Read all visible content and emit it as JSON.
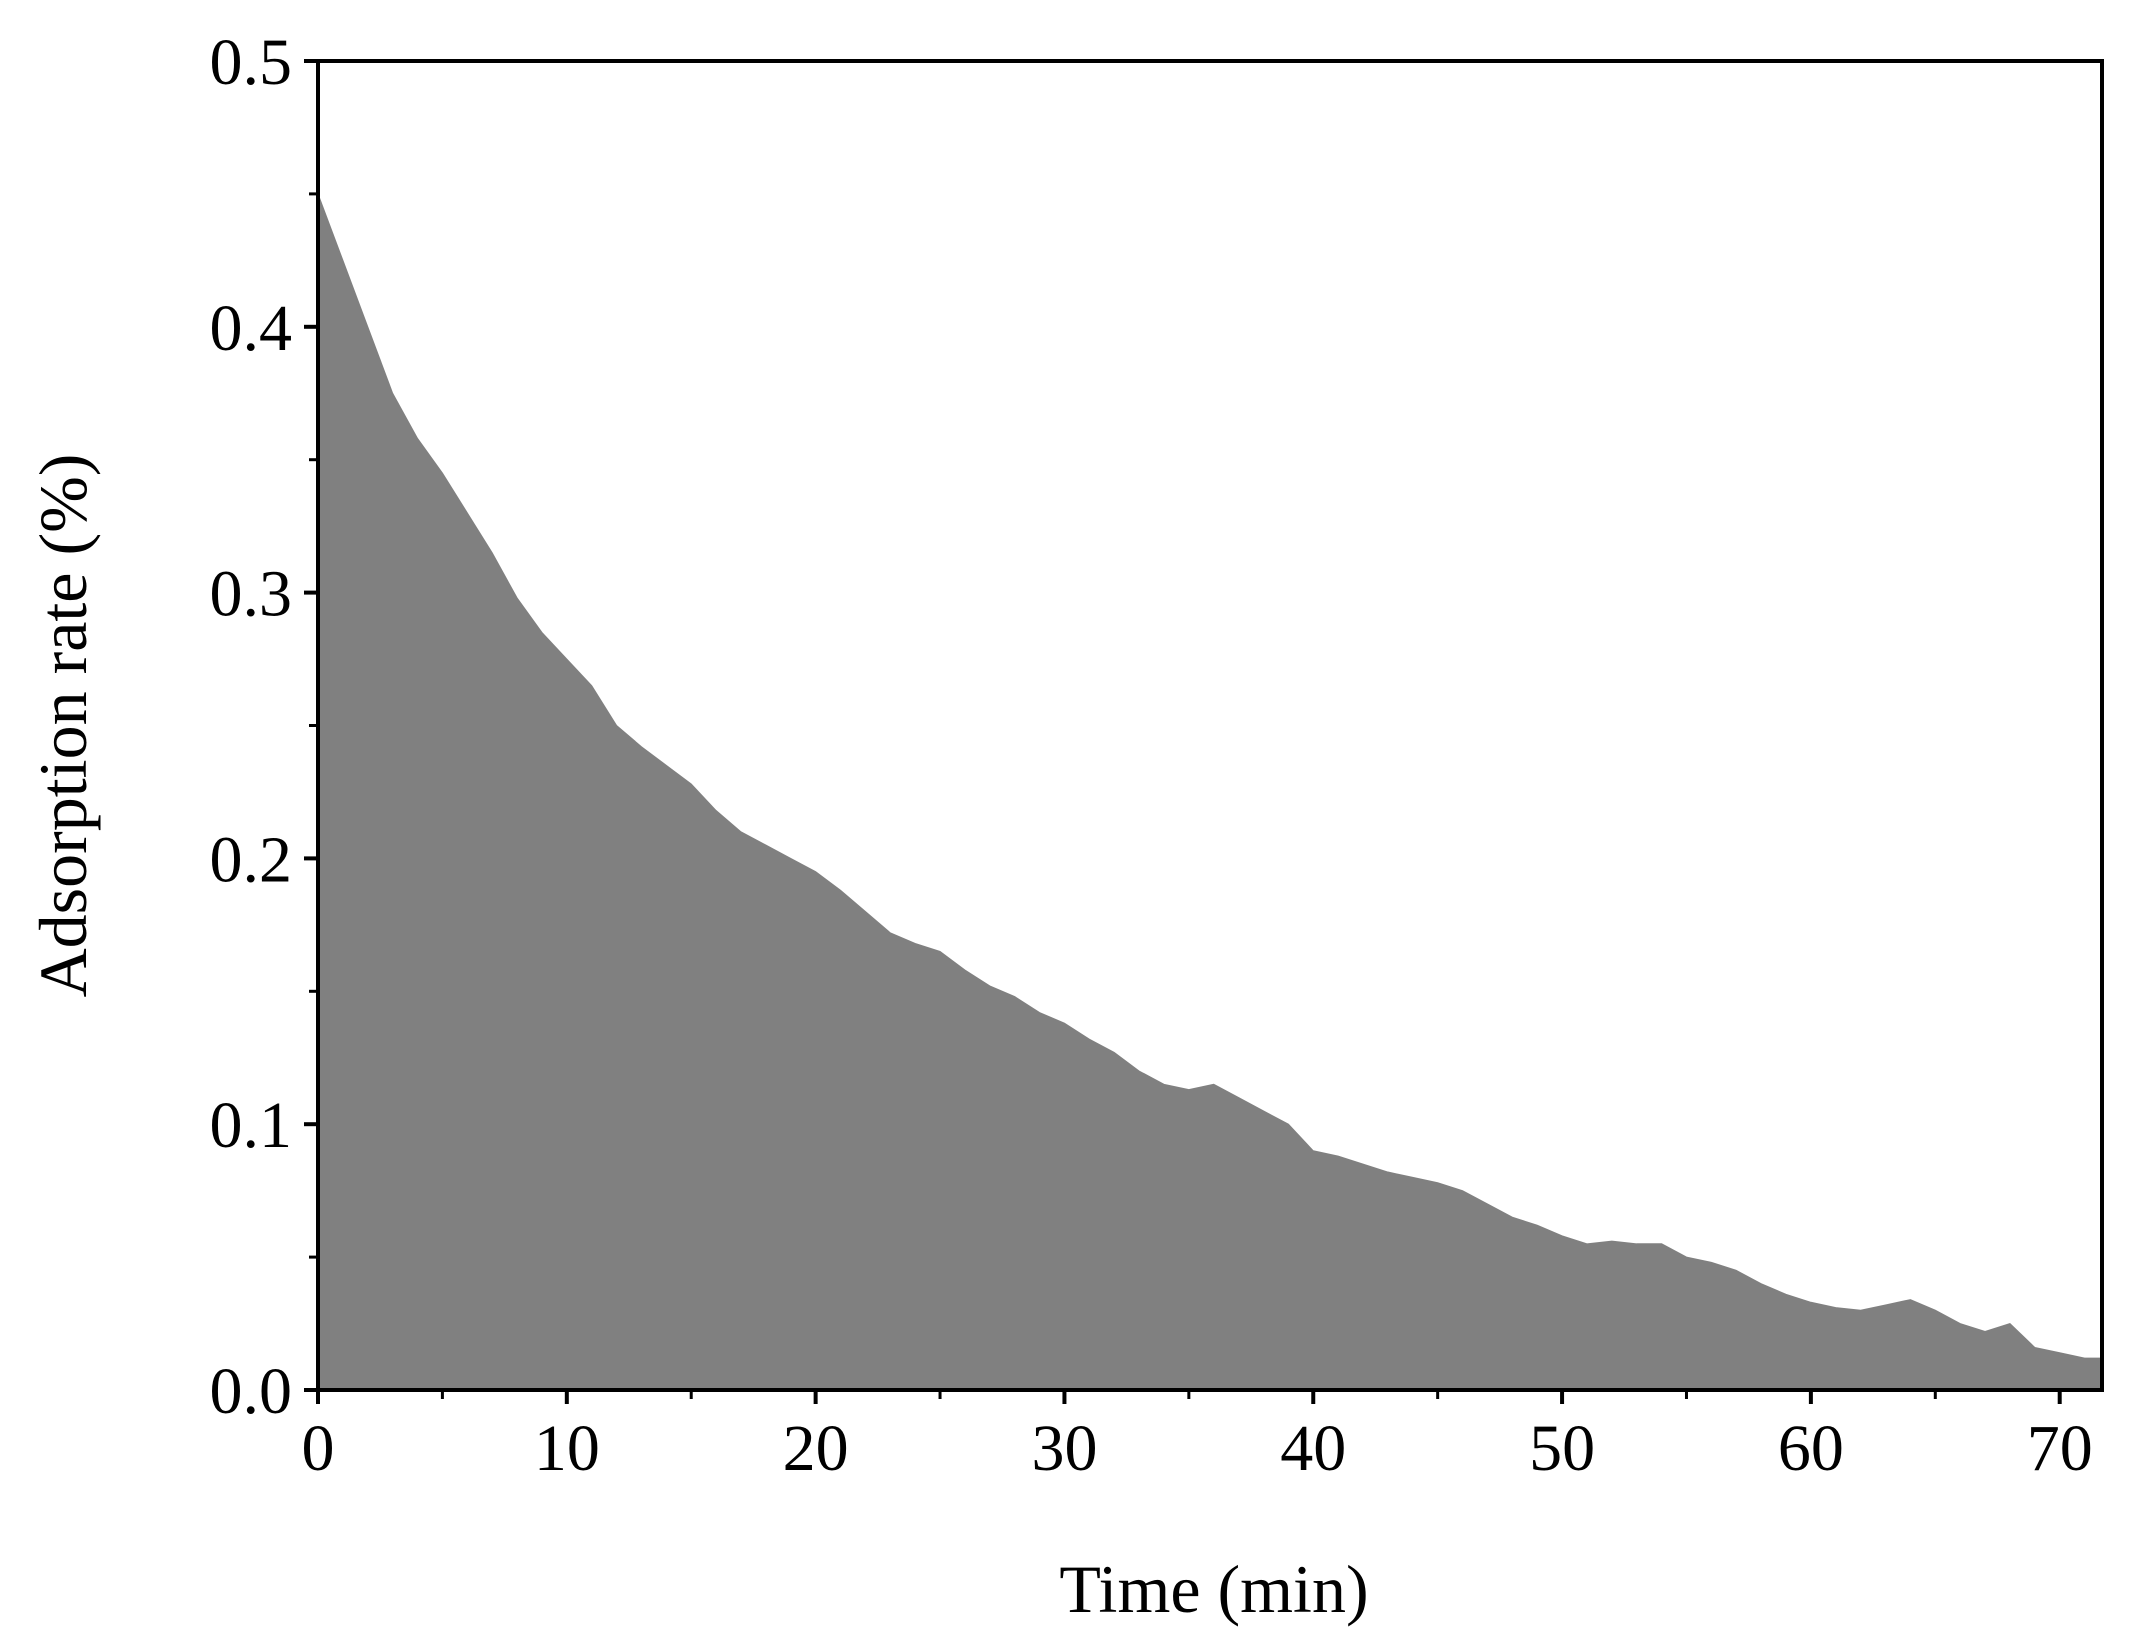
{
  "chart_data": {
    "type": "area",
    "title": "",
    "xlabel": "Time (min)",
    "ylabel": "Adsorption rate (%)",
    "xlim": [
      0,
      71.7
    ],
    "ylim": [
      0,
      0.5
    ],
    "x_ticks": [
      0,
      10,
      20,
      30,
      40,
      50,
      60,
      70
    ],
    "y_ticks": [
      0.0,
      0.1,
      0.2,
      0.3,
      0.4,
      0.5
    ],
    "x_tick_labels": [
      "0",
      "10",
      "20",
      "30",
      "40",
      "50",
      "60",
      "70"
    ],
    "y_tick_labels": [
      "0.0",
      "0.1",
      "0.2",
      "0.3",
      "0.4",
      "0.5"
    ],
    "grid": false,
    "legend": "none",
    "fill_color": "#808080",
    "series": [
      {
        "x": [
          0,
          1,
          2,
          3,
          4,
          5,
          6,
          7,
          8,
          9,
          10,
          11,
          12,
          13,
          14,
          15,
          16,
          17,
          18,
          19,
          20,
          21,
          22,
          23,
          24,
          25,
          26,
          27,
          28,
          29,
          30,
          31,
          32,
          33,
          34,
          35,
          36,
          37,
          38,
          39,
          40,
          41,
          42,
          43,
          44,
          45,
          46,
          47,
          48,
          49,
          50,
          51,
          52,
          53,
          54,
          55,
          56,
          57,
          58,
          59,
          60,
          61,
          62,
          63,
          64,
          65,
          66,
          67,
          68,
          69,
          70,
          71,
          71.7
        ],
        "values": [
          0.45,
          0.425,
          0.4,
          0.375,
          0.358,
          0.345,
          0.33,
          0.315,
          0.298,
          0.285,
          0.275,
          0.265,
          0.25,
          0.242,
          0.235,
          0.228,
          0.218,
          0.21,
          0.205,
          0.2,
          0.195,
          0.188,
          0.18,
          0.172,
          0.168,
          0.165,
          0.158,
          0.152,
          0.148,
          0.142,
          0.138,
          0.132,
          0.127,
          0.12,
          0.115,
          0.113,
          0.115,
          0.11,
          0.105,
          0.1,
          0.09,
          0.088,
          0.085,
          0.082,
          0.08,
          0.078,
          0.075,
          0.07,
          0.065,
          0.062,
          0.058,
          0.055,
          0.056,
          0.055,
          0.055,
          0.05,
          0.048,
          0.045,
          0.04,
          0.036,
          0.033,
          0.031,
          0.03,
          0.032,
          0.034,
          0.03,
          0.025,
          0.022,
          0.025,
          0.016,
          0.014,
          0.012,
          0.012
        ]
      }
    ]
  }
}
